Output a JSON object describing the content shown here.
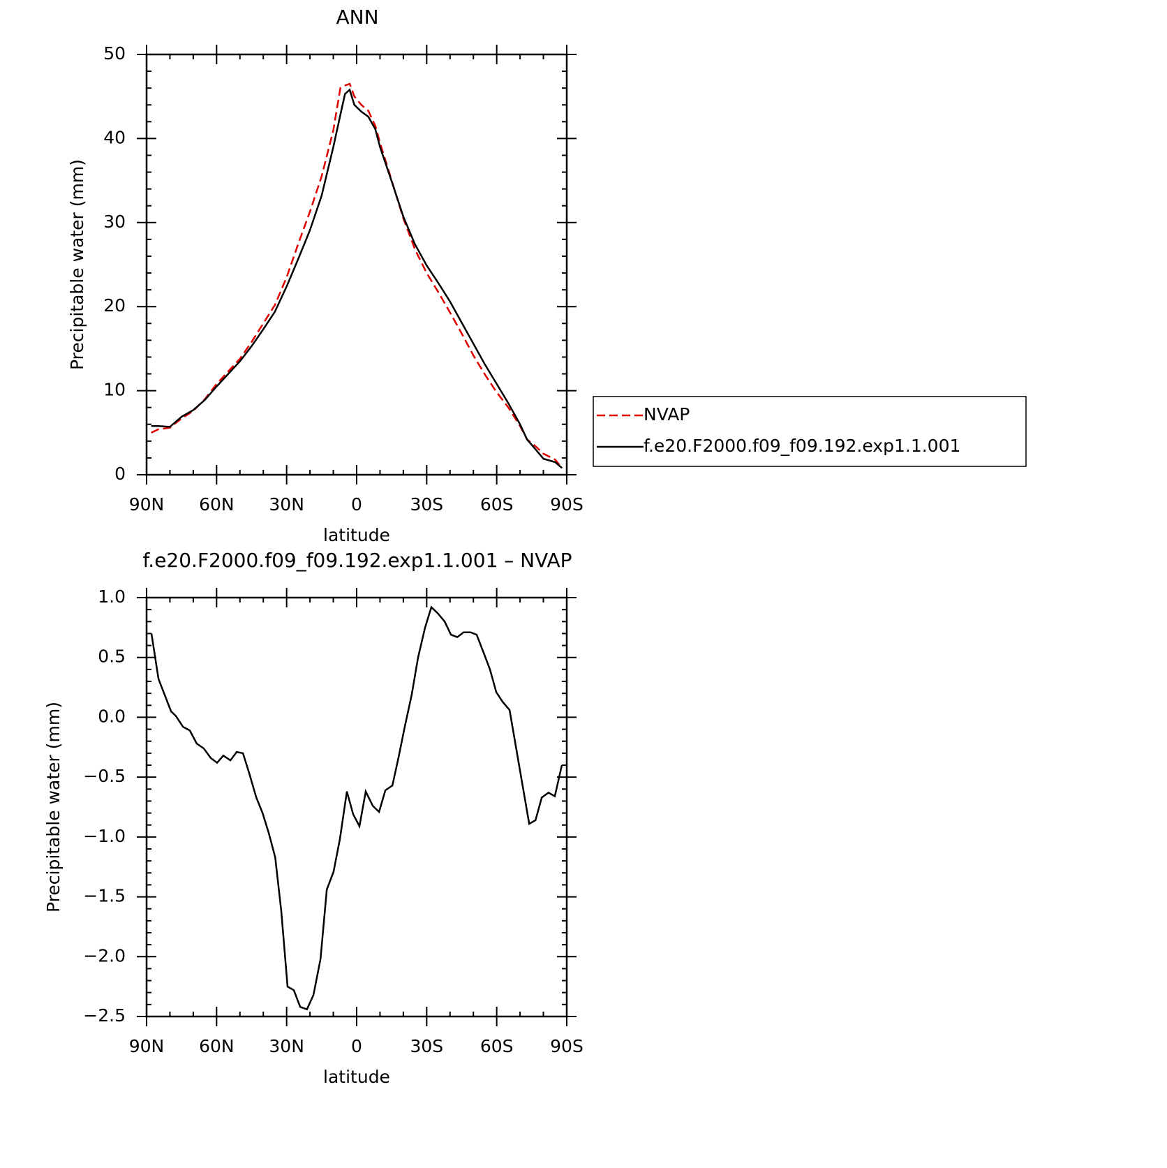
{
  "chart_data": [
    {
      "type": "line",
      "title": "ANN",
      "xlabel": "latitude",
      "ylabel": "Precipitable water (mm)",
      "x": [
        88,
        85,
        80,
        75,
        70,
        65,
        60,
        55,
        50,
        45,
        40,
        35,
        30,
        25,
        20,
        15,
        10,
        7,
        5,
        3,
        1,
        -2,
        -5,
        -8,
        -10,
        -15,
        -20,
        -25,
        -30,
        -35,
        -40,
        -45,
        -50,
        -55,
        -60,
        -65,
        -70,
        -73,
        -77,
        -80,
        -85,
        -88
      ],
      "series": [
        {
          "name": "NVAP",
          "color": "#e00000",
          "style": "dashed",
          "values": [
            5.0,
            5.4,
            5.6,
            6.7,
            7.6,
            9.0,
            10.8,
            12.3,
            13.8,
            15.8,
            18.0,
            20.2,
            23.5,
            27.5,
            31.3,
            35.5,
            41.0,
            46.0,
            46.3,
            46.5,
            45.0,
            44.0,
            43.3,
            41.5,
            39.5,
            35.0,
            30.5,
            26.8,
            24.0,
            21.7,
            19.3,
            16.8,
            14.2,
            11.9,
            9.8,
            8.0,
            5.8,
            4.2,
            3.3,
            2.5,
            1.8,
            0.8
          ]
        },
        {
          "name": "f.e20.F2000.f09_f09.192.exp1.1.001",
          "color": "#000000",
          "style": "solid",
          "values": [
            5.8,
            5.8,
            5.7,
            6.9,
            7.7,
            8.9,
            10.5,
            12.0,
            13.5,
            15.3,
            17.3,
            19.4,
            22.4,
            25.7,
            29.1,
            33.2,
            39.0,
            42.8,
            45.3,
            45.8,
            44.0,
            43.2,
            42.6,
            41.1,
            39.0,
            34.9,
            30.7,
            27.4,
            24.9,
            22.8,
            20.6,
            18.1,
            15.6,
            13.1,
            10.8,
            8.5,
            6.0,
            4.2,
            2.9,
            1.9,
            1.5,
            0.8
          ]
        }
      ],
      "xlim": [
        90,
        -90
      ],
      "xticks": [
        {
          "value": 90,
          "label": "90N"
        },
        {
          "value": 60,
          "label": "60N"
        },
        {
          "value": 30,
          "label": "30N"
        },
        0,
        {
          "value": -30,
          "label": "30S"
        },
        {
          "value": -60,
          "label": "60S"
        },
        {
          "value": -90,
          "label": "90S"
        }
      ],
      "ylim": [
        0,
        50
      ],
      "yticks": [
        0,
        10,
        20,
        30,
        40,
        50
      ],
      "legend": "right"
    },
    {
      "type": "line",
      "title": "f.e20.F2000.f09_f09.192.exp1.1.001 – NVAP",
      "xlabel": "latitude",
      "ylabel": "Precipitable water (mm)",
      "x": [
        87.9,
        84.9,
        79.5,
        77.4,
        74.4,
        71.5,
        68.5,
        65.5,
        62.5,
        59.8,
        57.1,
        54.1,
        51.4,
        48.7,
        46.0,
        43.0,
        40.3,
        37.6,
        34.9,
        32.3,
        29.6,
        26.9,
        24.2,
        21.3,
        18.5,
        15.5,
        12.8,
        9.9,
        7.2,
        4.2,
        1.5,
        -1.2,
        -3.9,
        -6.9,
        -9.6,
        -12.3,
        -15.3,
        -18.0,
        -20.6,
        -23.6,
        -26.3,
        -29.3,
        -32.0,
        -34.7,
        -37.7,
        -40.4,
        -43.1,
        -45.8,
        -48.8,
        -51.4,
        -54.4,
        -57.1,
        -59.8,
        -62.5,
        -65.5,
        -73.9,
        -76.6,
        -79.3,
        -82.2,
        -84.9,
        -87.9
      ],
      "values": [
        0.7,
        0.32,
        0.05,
        0.01,
        -0.08,
        -0.11,
        -0.22,
        -0.26,
        -0.34,
        -0.38,
        -0.32,
        -0.36,
        -0.29,
        -0.3,
        -0.47,
        -0.67,
        -0.8,
        -0.97,
        -1.17,
        -1.62,
        -2.25,
        -2.28,
        -2.42,
        -2.44,
        -2.32,
        -2.02,
        -1.44,
        -1.29,
        -1.02,
        -0.62,
        -0.81,
        -0.91,
        -0.62,
        -0.74,
        -0.79,
        -0.61,
        -0.57,
        -0.33,
        -0.08,
        0.19,
        0.5,
        0.75,
        0.92,
        0.87,
        0.8,
        0.69,
        0.67,
        0.71,
        0.71,
        0.69,
        0.54,
        0.4,
        0.21,
        0.13,
        0.06,
        -0.89,
        -0.86,
        -0.67,
        -0.63,
        -0.66,
        -0.4
      ],
      "color": "#000000",
      "style": "solid",
      "xlim": [
        90,
        -90
      ],
      "xticks": [
        {
          "value": 90,
          "label": "90N"
        },
        {
          "value": 60,
          "label": "60N"
        },
        {
          "value": 30,
          "label": "30N"
        },
        0,
        {
          "value": -30,
          "label": "30S"
        },
        {
          "value": -60,
          "label": "60S"
        },
        {
          "value": -90,
          "label": "90S"
        }
      ],
      "ylim": [
        -2.5,
        1.0
      ],
      "yticks": [
        {
          "value": -2.5,
          "label": "−2.5"
        },
        {
          "value": -2.0,
          "label": "−2.0"
        },
        {
          "value": -1.5,
          "label": "−1.5"
        },
        {
          "value": -1.0,
          "label": "−1.0"
        },
        {
          "value": -0.5,
          "label": "−0.5"
        },
        {
          "value": 0,
          "label": "0.0"
        },
        0.5,
        {
          "value": 1.0,
          "label": "1.0"
        }
      ]
    }
  ]
}
